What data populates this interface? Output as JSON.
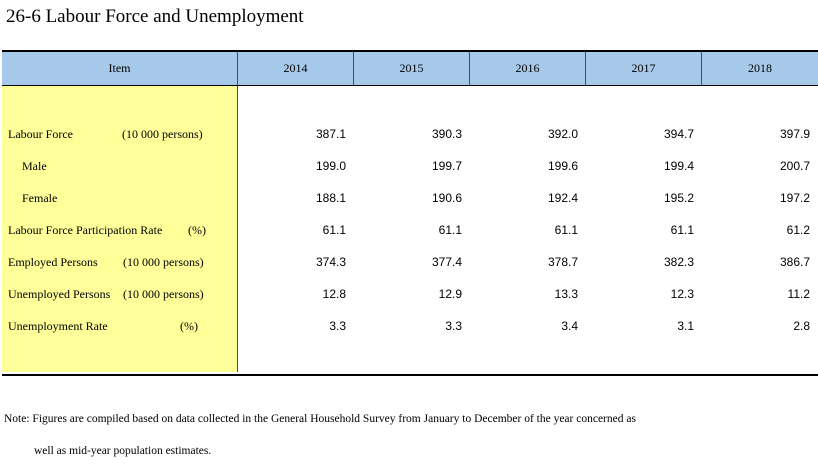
{
  "title": "26-6  Labour Force and Unemployment",
  "header": {
    "item": "Item",
    "years": [
      "2014",
      "2015",
      "2016",
      "2017",
      "2018"
    ]
  },
  "rows": [
    {
      "label": "Labour Force",
      "unit": "(10 000 persons)",
      "values": [
        "387.1",
        "390.3",
        "392.0",
        "394.7",
        "397.9"
      ]
    },
    {
      "label": "Male",
      "unit": "",
      "values": [
        "199.0",
        "199.7",
        "199.6",
        "199.4",
        "200.7"
      ]
    },
    {
      "label": "Female",
      "unit": "",
      "values": [
        "188.1",
        "190.6",
        "192.4",
        "195.2",
        "197.2"
      ]
    },
    {
      "label": "Labour Force Participation Rate",
      "unit": "(%)",
      "values": [
        "61.1",
        "61.1",
        "61.1",
        "61.1",
        "61.2"
      ]
    },
    {
      "label": "Employed Persons",
      "unit": "(10 000 persons)",
      "values": [
        "374.3",
        "377.4",
        "378.7",
        "382.3",
        "386.7"
      ]
    },
    {
      "label": "Unemployed Persons",
      "unit": "(10 000 persons)",
      "values": [
        "12.8",
        "12.9",
        "13.3",
        "12.3",
        "11.2"
      ]
    },
    {
      "label": "Unemployment Rate",
      "unit": "(%)",
      "values": [
        "3.3",
        "3.3",
        "3.4",
        "3.1",
        "2.8"
      ]
    }
  ],
  "note": {
    "line1": "Note: Figures are compiled based on data collected in the General Household Survey from January to December of the year concerned as",
    "line2": "well as mid-year population estimates."
  },
  "colors": {
    "header_bg": "#a6c9ea",
    "item_col_bg": "#ffff99"
  }
}
